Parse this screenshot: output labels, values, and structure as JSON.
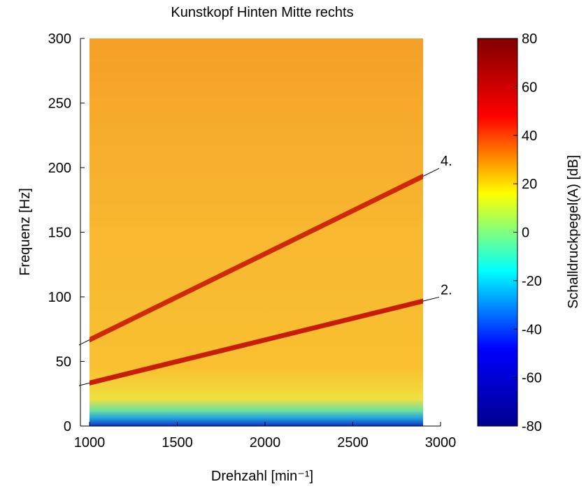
{
  "chart_data": {
    "type": "spectrogram",
    "title": "Kunstkopf Hinten Mitte rechts",
    "xlabel": "Drehzahl [min⁻¹]",
    "ylabel": "Frequenz [Hz]",
    "xlim": [
      1000,
      3000
    ],
    "xticks": [
      1000,
      1500,
      2000,
      2500,
      3000
    ],
    "ylim": [
      0,
      300
    ],
    "yticks": [
      0,
      50,
      100,
      150,
      200,
      250,
      300
    ],
    "colorbar": {
      "label": "Schalldruckpegel(A) [dB]",
      "lim": [
        -80,
        80
      ],
      "ticks": [
        -80,
        -60,
        -40,
        -20,
        0,
        20,
        40,
        60,
        80
      ],
      "colors": [
        "#00008f",
        "#0000ff",
        "#00ffff",
        "#ffff00",
        "#ff0000",
        "#800000"
      ]
    },
    "series": [
      {
        "name": "2.",
        "color": "#c00000",
        "x": [
          1000,
          2900
        ],
        "values": [
          33.3,
          96.7
        ]
      },
      {
        "name": "4.",
        "color": "#c81000",
        "x": [
          1000,
          2900
        ],
        "values": [
          66.7,
          193.3
        ]
      }
    ]
  }
}
